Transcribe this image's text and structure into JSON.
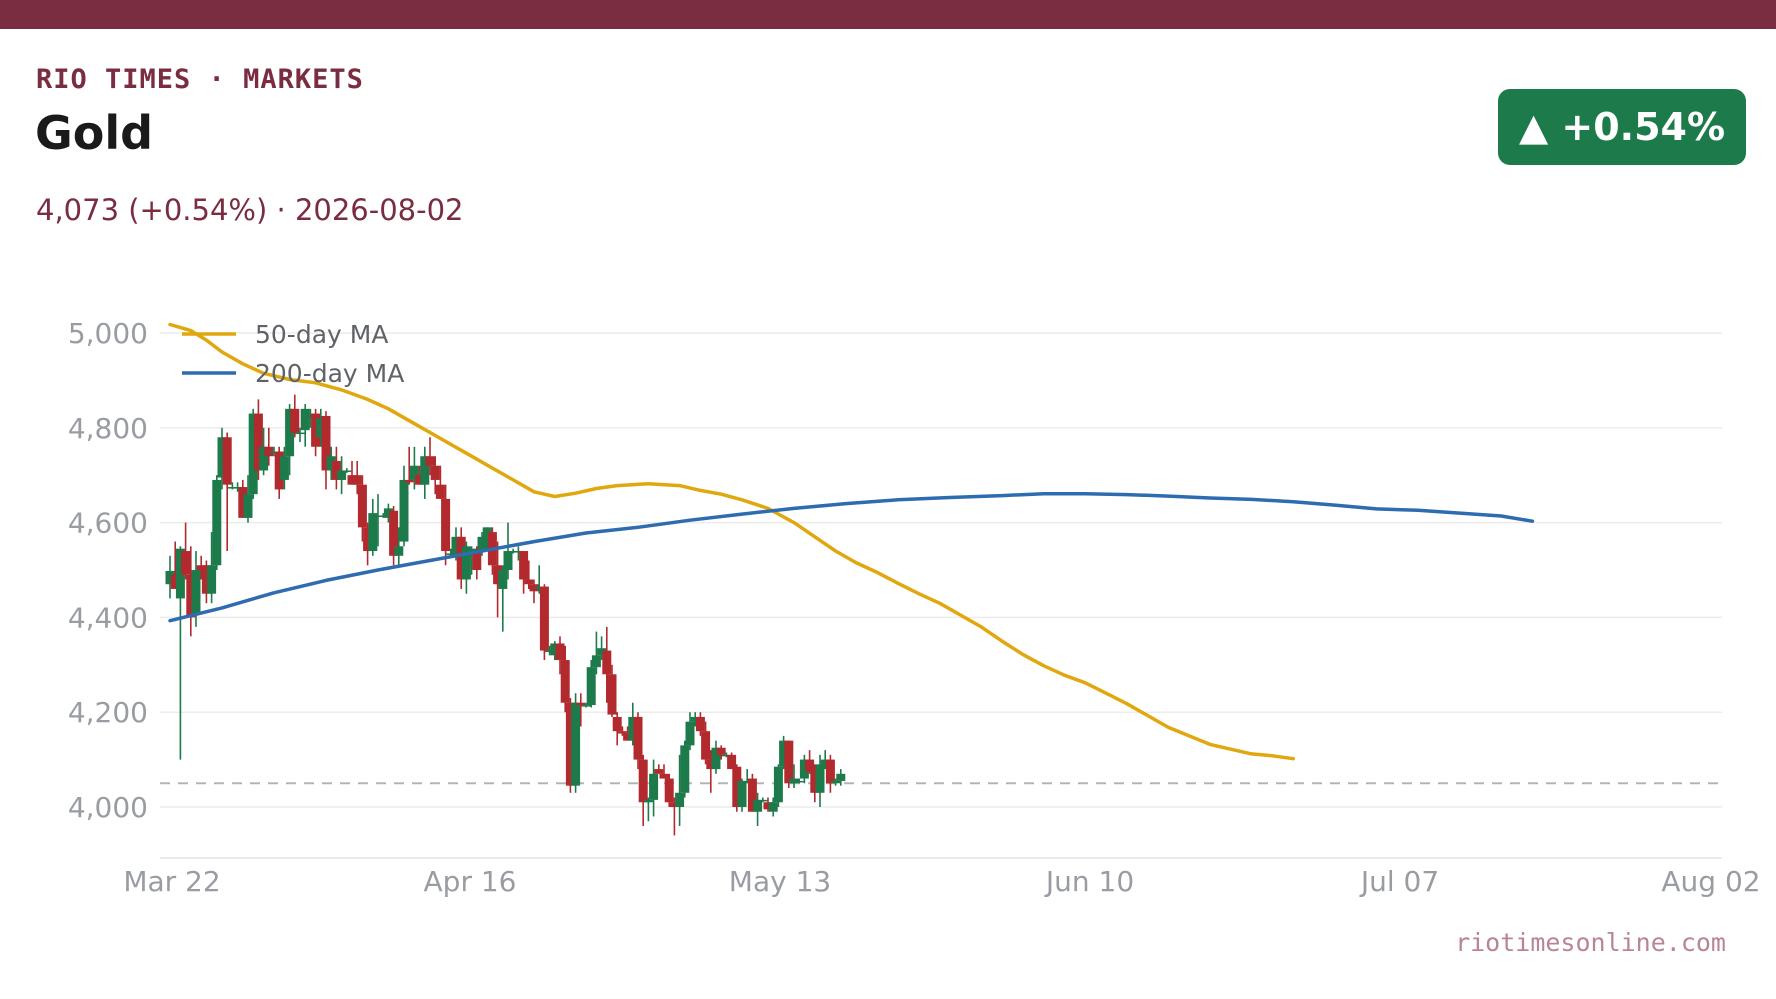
{
  "header": {
    "brand": "RIO TIMES · MARKETS",
    "title": "Gold",
    "subline": "4,073 (+0.54%)  ·  2026-08-02",
    "badge": "▲ +0.54%",
    "badge_color": "#1d7a4a",
    "accent_color": "#7a2c40"
  },
  "footer": {
    "source": "riotimesonline.com"
  },
  "chart_data": {
    "type": "candlestick",
    "ylim": [
      3900,
      5020
    ],
    "yticks": [
      4000,
      4200,
      4400,
      4600,
      4800,
      5000
    ],
    "ytick_labels": [
      "4,000",
      "4,200",
      "4,400",
      "4,600",
      "4,800",
      "5,000"
    ],
    "xtick_labels": [
      "Mar 22",
      "Apr 16",
      "May 13",
      "Jun 10",
      "Jul 07",
      "Aug 02"
    ],
    "grid": true,
    "up_color": "#1d7a4a",
    "down_color": "#b2292e",
    "reference_line": {
      "value": 4050,
      "style": "dashed",
      "color": "#b5b5b5"
    },
    "legend_position": "top-left",
    "ma_series": [
      {
        "name": "50-day MA",
        "color": "#e0a70f",
        "points": [
          [
            0,
            5018
          ],
          [
            4,
            5005
          ],
          [
            7,
            4985
          ],
          [
            10,
            4960
          ],
          [
            14,
            4935
          ],
          [
            18,
            4915
          ],
          [
            23,
            4902
          ],
          [
            28,
            4895
          ],
          [
            33,
            4880
          ],
          [
            38,
            4860
          ],
          [
            42,
            4840
          ],
          [
            46,
            4815
          ],
          [
            50,
            4790
          ],
          [
            54,
            4765
          ],
          [
            58,
            4740
          ],
          [
            62,
            4715
          ],
          [
            66,
            4690
          ],
          [
            70,
            4665
          ],
          [
            74,
            4655
          ],
          [
            78,
            4662
          ],
          [
            82,
            4672
          ],
          [
            86,
            4678
          ],
          [
            92,
            4682
          ],
          [
            98,
            4678
          ],
          [
            102,
            4668
          ],
          [
            106,
            4660
          ],
          [
            110,
            4648
          ],
          [
            115,
            4630
          ],
          [
            120,
            4600
          ],
          [
            124,
            4570
          ],
          [
            128,
            4540
          ],
          [
            132,
            4515
          ],
          [
            136,
            4495
          ],
          [
            140,
            4472
          ],
          [
            144,
            4450
          ],
          [
            148,
            4430
          ],
          [
            152,
            4405
          ],
          [
            156,
            4380
          ],
          [
            160,
            4350
          ],
          [
            164,
            4322
          ],
          [
            168,
            4298
          ],
          [
            172,
            4278
          ],
          [
            176,
            4262
          ],
          [
            180,
            4240
          ],
          [
            184,
            4218
          ],
          [
            188,
            4193
          ],
          [
            192,
            4168
          ],
          [
            196,
            4150
          ],
          [
            200,
            4132
          ],
          [
            204,
            4122
          ],
          [
            208,
            4112
          ],
          [
            212,
            4108
          ],
          [
            216,
            4102
          ]
        ]
      },
      {
        "name": "200-day MA",
        "color": "#2e6cb0",
        "points": [
          [
            0,
            4393
          ],
          [
            10,
            4420
          ],
          [
            20,
            4452
          ],
          [
            30,
            4478
          ],
          [
            40,
            4500
          ],
          [
            50,
            4520
          ],
          [
            60,
            4540
          ],
          [
            70,
            4560
          ],
          [
            80,
            4578
          ],
          [
            90,
            4590
          ],
          [
            100,
            4605
          ],
          [
            110,
            4618
          ],
          [
            120,
            4630
          ],
          [
            130,
            4640
          ],
          [
            140,
            4648
          ],
          [
            150,
            4653
          ],
          [
            160,
            4657
          ],
          [
            168,
            4661
          ],
          [
            176,
            4661
          ],
          [
            184,
            4659
          ],
          [
            192,
            4656
          ],
          [
            200,
            4652
          ],
          [
            208,
            4649
          ],
          [
            216,
            4644
          ],
          [
            224,
            4637
          ],
          [
            232,
            4629
          ],
          [
            240,
            4626
          ],
          [
            248,
            4620
          ],
          [
            256,
            4614
          ],
          [
            262,
            4603
          ]
        ]
      }
    ],
    "ohlc": [
      [
        4470,
        4530,
        4440,
        4498
      ],
      [
        4490,
        4560,
        4470,
        4460
      ],
      [
        4440,
        4550,
        4100,
        4545
      ],
      [
        4540,
        4600,
        4480,
        4490
      ],
      [
        4490,
        4550,
        4360,
        4400
      ],
      [
        4405,
        4540,
        4380,
        4500
      ],
      [
        4510,
        4530,
        4480,
        4500
      ],
      [
        4510,
        4520,
        4430,
        4450
      ],
      [
        4450,
        4580,
        4430,
        4510
      ],
      [
        4510,
        4700,
        4500,
        4690
      ],
      [
        4695,
        4800,
        4670,
        4780
      ],
      [
        4780,
        4790,
        4540,
        4680
      ],
      [
        4675,
        4685,
        4670,
        4675
      ],
      [
        4675,
        4685,
        4665,
        4675
      ],
      [
        4675,
        4690,
        4610,
        4610
      ],
      [
        4610,
        4700,
        4600,
        4660
      ],
      [
        4660,
        4840,
        4650,
        4830
      ],
      [
        4830,
        4860,
        4690,
        4710
      ],
      [
        4710,
        4800,
        4700,
        4760
      ],
      [
        4760,
        4800,
        4720,
        4740
      ],
      [
        4750,
        4760,
        4740,
        4750
      ],
      [
        4750,
        4760,
        4650,
        4670
      ],
      [
        4690,
        4760,
        4670,
        4740
      ],
      [
        4740,
        4850,
        4700,
        4840
      ],
      [
        4840,
        4870,
        4780,
        4790
      ],
      [
        4790,
        4800,
        4770,
        4790
      ],
      [
        4795,
        4850,
        4760,
        4840
      ],
      [
        4820,
        4840,
        4800,
        4830
      ],
      [
        4830,
        4840,
        4740,
        4760
      ],
      [
        4780,
        4840,
        4760,
        4820
      ],
      [
        4825,
        4835,
        4670,
        4710
      ],
      [
        4710,
        4760,
        4690,
        4740
      ],
      [
        4730,
        4760,
        4670,
        4690
      ],
      [
        4690,
        4740,
        4660,
        4710
      ],
      [
        4710,
        4715,
        4705,
        4710
      ],
      [
        4700,
        4730,
        4680,
        4680
      ],
      [
        4700,
        4730,
        4660,
        4680
      ],
      [
        4680,
        4700,
        4560,
        4590
      ],
      [
        4590,
        4600,
        4510,
        4540
      ],
      [
        4540,
        4650,
        4530,
        4620
      ],
      [
        4615,
        4660,
        4550,
        4615
      ],
      [
        4615,
        4620,
        4610,
        4615
      ],
      [
        4610,
        4640,
        4600,
        4630
      ],
      [
        4625,
        4635,
        4510,
        4530
      ],
      [
        4530,
        4590,
        4510,
        4550
      ],
      [
        4560,
        4720,
        4550,
        4690
      ],
      [
        4690,
        4760,
        4680,
        4685
      ],
      [
        4690,
        4760,
        4670,
        4720
      ],
      [
        4700,
        4720,
        4680,
        4680
      ],
      [
        4680,
        4760,
        4650,
        4740
      ],
      [
        4740,
        4780,
        4700,
        4720
      ],
      [
        4720,
        4740,
        4660,
        4690
      ],
      [
        4680,
        4720,
        4650,
        4650
      ],
      [
        4650,
        4680,
        4510,
        4540
      ],
      [
        4535,
        4545,
        4530,
        4535
      ],
      [
        4530,
        4590,
        4520,
        4570
      ],
      [
        4570,
        4590,
        4460,
        4480
      ],
      [
        4480,
        4560,
        4450,
        4550
      ],
      [
        4540,
        4550,
        4490,
        4545
      ],
      [
        4540,
        4550,
        4480,
        4500
      ],
      [
        4540,
        4580,
        4530,
        4570
      ],
      [
        4560,
        4590,
        4540,
        4590
      ],
      [
        4580,
        4590,
        4490,
        4510
      ],
      [
        4510,
        4560,
        4400,
        4470
      ],
      [
        4460,
        4510,
        4370,
        4500
      ],
      [
        4500,
        4600,
        4480,
        4540
      ],
      [
        4540,
        4545,
        4535,
        4540
      ],
      [
        4540,
        4550,
        4520,
        4540
      ],
      [
        4540,
        4540,
        4450,
        4480
      ],
      [
        4480,
        4520,
        4460,
        4470
      ],
      [
        4470,
        4480,
        4430,
        4455
      ],
      [
        4460,
        4510,
        4450,
        4465
      ],
      [
        4465,
        4470,
        4310,
        4330
      ],
      [
        4330,
        4340,
        4320,
        4330
      ],
      [
        4320,
        4350,
        4310,
        4345
      ],
      [
        4345,
        4360,
        4280,
        4310
      ],
      [
        4310,
        4340,
        4200,
        4220
      ],
      [
        4220,
        4230,
        4030,
        4045
      ],
      [
        4045,
        4240,
        4030,
        4220
      ],
      [
        4220,
        4240,
        4170,
        4215
      ],
      [
        4215,
        4220,
        4210,
        4215
      ],
      [
        4215,
        4310,
        4210,
        4295
      ],
      [
        4295,
        4370,
        4280,
        4320
      ],
      [
        4320,
        4360,
        4310,
        4335
      ],
      [
        4330,
        4380,
        4220,
        4280
      ],
      [
        4280,
        4300,
        4190,
        4195
      ],
      [
        4190,
        4200,
        4130,
        4160
      ],
      [
        4160,
        4170,
        4150,
        4155
      ],
      [
        4155,
        4170,
        4140,
        4140
      ],
      [
        4140,
        4220,
        4130,
        4190
      ],
      [
        4190,
        4200,
        4080,
        4100
      ],
      [
        4100,
        4110,
        3960,
        4010
      ],
      [
        4010,
        4020,
        3970,
        4015
      ],
      [
        4015,
        4100,
        3980,
        4070
      ],
      [
        4080,
        4090,
        4070,
        4070
      ],
      [
        4070,
        4090,
        4060,
        4060
      ],
      [
        4060,
        4070,
        4000,
        4010
      ],
      [
        4010,
        4020,
        3940,
        4000
      ],
      [
        4000,
        4110,
        3960,
        4030
      ],
      [
        4030,
        4140,
        4020,
        4130
      ],
      [
        4130,
        4200,
        4120,
        4180
      ],
      [
        4180,
        4200,
        4170,
        4190
      ],
      [
        4190,
        4200,
        4150,
        4160
      ],
      [
        4160,
        4180,
        4090,
        4100
      ],
      [
        4100,
        4120,
        4030,
        4080
      ],
      [
        4080,
        4140,
        4070,
        4125
      ],
      [
        4125,
        4130,
        4100,
        4110
      ],
      [
        4110,
        4115,
        4105,
        4110
      ],
      [
        4110,
        4115,
        4080,
        4080
      ],
      [
        4085,
        4090,
        3990,
        4000
      ],
      [
        4000,
        4060,
        3990,
        4055
      ],
      [
        4055,
        4080,
        4050,
        4055
      ],
      [
        4060,
        4070,
        3990,
        3990
      ],
      [
        3990,
        4030,
        3960,
        4015
      ],
      [
        4015,
        4020,
        4010,
        4015
      ],
      [
        4010,
        4020,
        3990,
        3995
      ],
      [
        3990,
        4020,
        3980,
        4010
      ],
      [
        4010,
        4090,
        4000,
        4085
      ],
      [
        4085,
        4150,
        4080,
        4140
      ],
      [
        4140,
        4140,
        4040,
        4050
      ],
      [
        4050,
        4090,
        4040,
        4060
      ],
      [
        4055,
        4060,
        4050,
        4055
      ],
      [
        4060,
        4110,
        4050,
        4100
      ],
      [
        4100,
        4120,
        4070,
        4075
      ],
      [
        4080,
        4090,
        4010,
        4030
      ],
      [
        4030,
        4110,
        4000,
        4090
      ],
      [
        4085,
        4120,
        4080,
        4100
      ],
      [
        4100,
        4110,
        4030,
        4050
      ],
      [
        4050,
        4060,
        4045,
        4055
      ],
      [
        4055,
        4080,
        4045,
        4070
      ]
    ]
  }
}
